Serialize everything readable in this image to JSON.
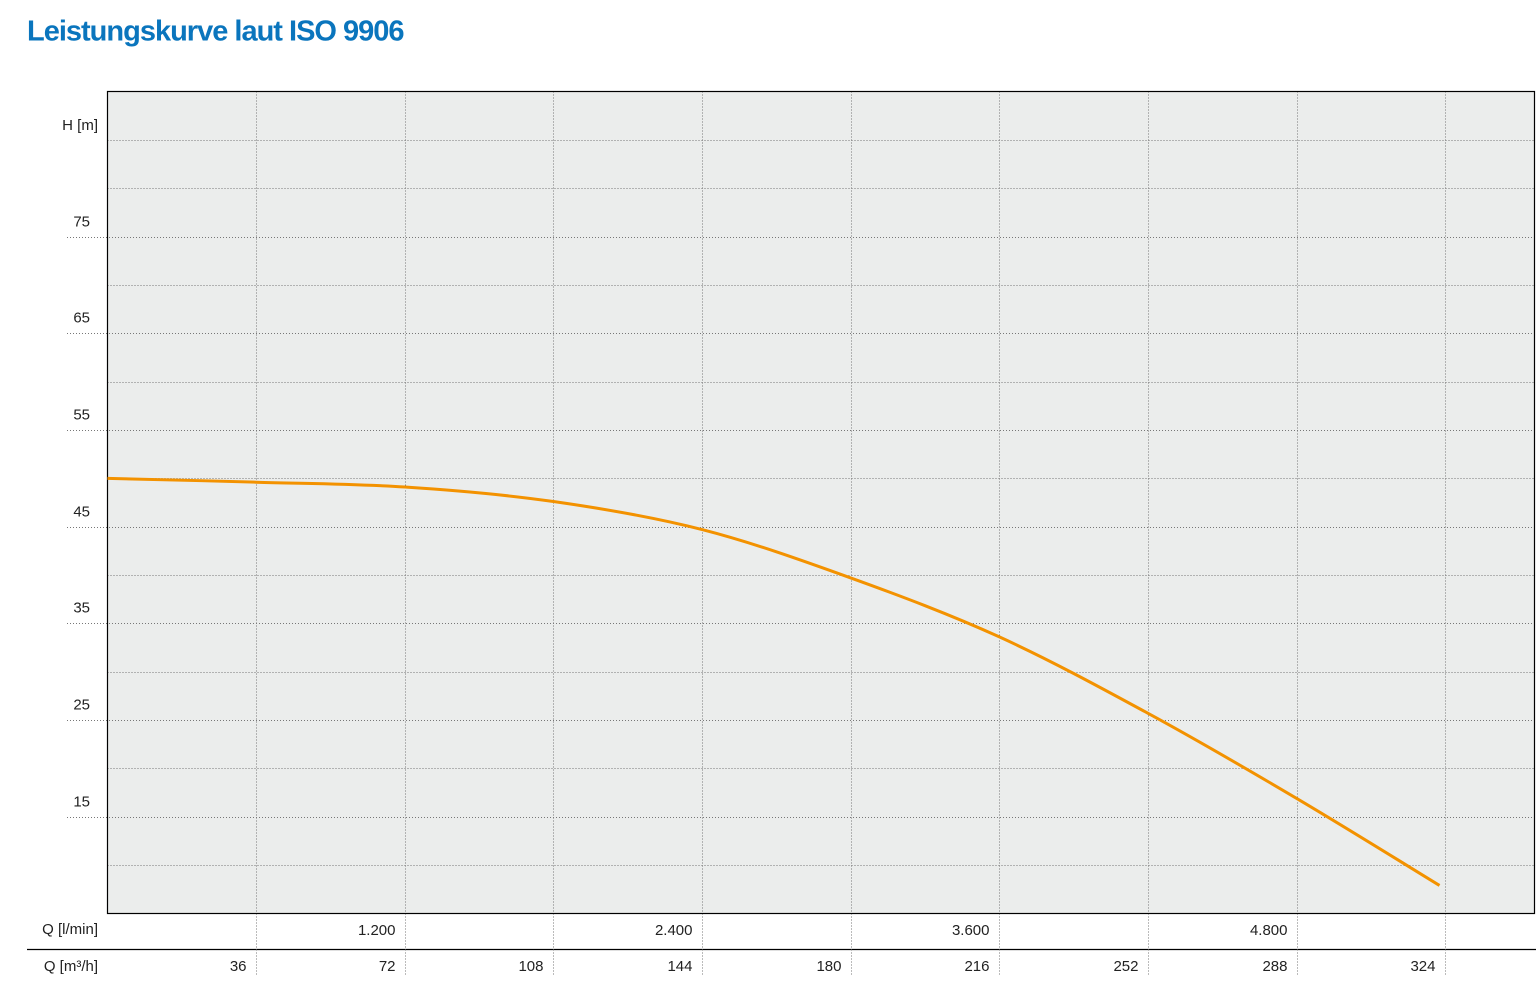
{
  "chart_data": {
    "type": "line",
    "title": "Leistungskurve laut ISO 9906",
    "y_label": "H [m]",
    "x_label": "Q [m³/h]",
    "x2_label": "Q [l/min]",
    "x": [
      0,
      36,
      72,
      108,
      144,
      180,
      216,
      252,
      288,
      322.6
    ],
    "values": [
      50,
      49.6,
      49.1,
      47.6,
      44.7,
      39.7,
      33.6,
      25.7,
      16.9,
      7.9
    ],
    "color": "#f39200",
    "xlim": [
      0,
      345.6
    ],
    "xticks": [
      36,
      72,
      108,
      144,
      180,
      216,
      252,
      288,
      324
    ],
    "x2lim": [
      0,
      5760
    ],
    "x2ticks": [
      {
        "value": 1200,
        "label": "1.200"
      },
      {
        "value": 2400,
        "label": "2.400"
      },
      {
        "value": 3600,
        "label": "3.600"
      },
      {
        "value": 4800,
        "label": "4.800"
      }
    ],
    "ylim": [
      5,
      90
    ],
    "yticks": [
      15,
      25,
      35,
      45,
      55,
      65,
      75
    ],
    "y_minor_ticks": [
      10,
      20,
      30,
      40,
      50,
      60,
      70,
      80,
      85
    ],
    "grid": true
  }
}
